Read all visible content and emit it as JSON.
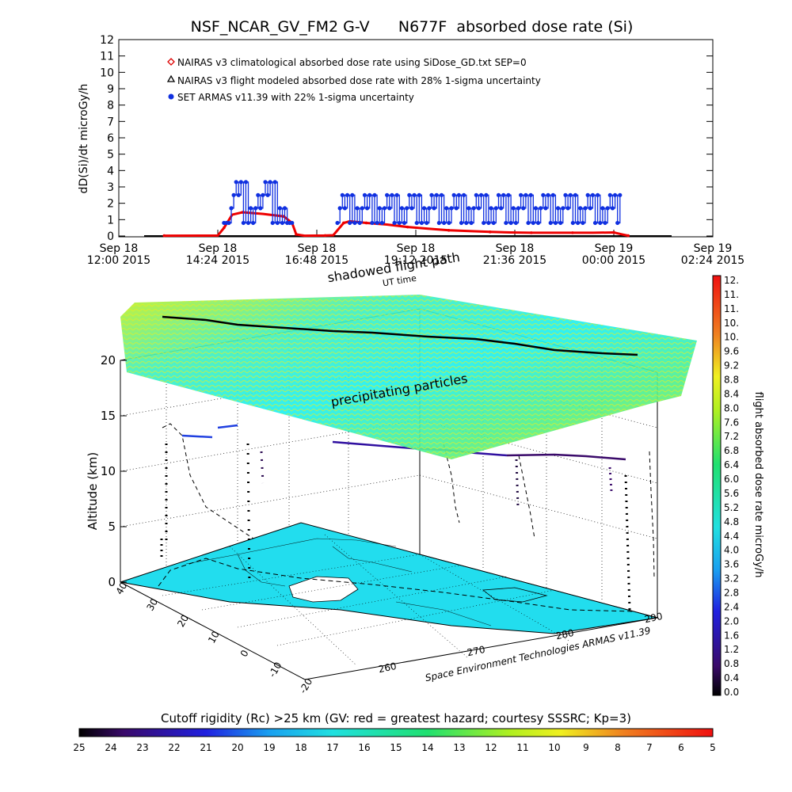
{
  "title": "NSF_NCAR_GV_FM2 G-V      N677F  absorbed dose rate (Si)",
  "chart_data": [
    {
      "type": "line",
      "ylabel": "dD(Si)/dt microGy/h",
      "ylim": [
        0,
        12
      ],
      "yticks": [
        "0",
        "1",
        "2",
        "3",
        "4",
        "5",
        "6",
        "7",
        "8",
        "9",
        "10",
        "11",
        "12"
      ],
      "xlim_hours": [
        0,
        14.4
      ],
      "xticks": [
        {
          "line1": "Sep 18",
          "line2": "12:00 2015",
          "h": 0
        },
        {
          "line1": "Sep 18",
          "line2": "14:24 2015",
          "h": 2.4
        },
        {
          "line1": "Sep 18",
          "line2": "16:48 2015",
          "h": 4.8
        },
        {
          "line1": "Sep 18",
          "line2": "19:12 2015",
          "h": 7.2
        },
        {
          "line1": "Sep 18",
          "line2": "21:36 2015",
          "h": 9.6
        },
        {
          "line1": "Sep 19",
          "line2": "00:00 2015",
          "h": 12.0
        },
        {
          "line1": "Sep 19",
          "line2": "02:24 2015",
          "h": 14.4
        }
      ],
      "legend": [
        {
          "label": "NAIRAS v3 climatological absorbed dose rate using SiDose_GD.txt SEP=0",
          "marker": "diamond",
          "color": "#dd0000"
        },
        {
          "label": "NAIRAS v3 flight modeled absorbed dose rate with 28% 1-sigma uncertainty",
          "marker": "triangle",
          "color": "#000000"
        },
        {
          "label": "SET ARMAS v11.39 with 22% 1-sigma uncertainty",
          "marker": "circle",
          "color": "#1030e0"
        }
      ],
      "series": [
        {
          "name": "NAIRAS v3 climatological absorbed dose rate using SiDose_GD.txt SEP=0",
          "color": "#ee0000",
          "x": [
            1.1,
            2.4,
            2.55,
            2.75,
            3.0,
            3.5,
            4.0,
            4.2,
            4.3,
            4.5,
            5.0,
            5.2,
            5.45,
            5.6,
            6.0,
            6.5,
            7.0,
            7.5,
            8.0,
            8.5,
            9.0,
            9.5,
            10.0,
            10.5,
            11.0,
            11.5,
            12.0,
            12.2,
            12.35
          ],
          "y": [
            0.02,
            0.03,
            0.5,
            1.3,
            1.45,
            1.35,
            1.2,
            0.8,
            0.1,
            0.02,
            0.03,
            0.05,
            0.8,
            0.9,
            0.8,
            0.7,
            0.55,
            0.45,
            0.35,
            0.3,
            0.25,
            0.22,
            0.2,
            0.2,
            0.2,
            0.2,
            0.22,
            0.1,
            0.02
          ]
        },
        {
          "name": "SET ARMAS v11.39 with 22% 1-sigma uncertainty",
          "color": "#1030e0",
          "segments": [
            {
              "x0": 2.55,
              "x1": 4.2,
              "levels": [
                0.8,
                1.7,
                2.5,
                3.3
              ]
            },
            {
              "x0": 5.3,
              "x1": 12.15,
              "levels": [
                0.8,
                1.7,
                2.5
              ]
            }
          ]
        }
      ]
    },
    {
      "type": "scatter",
      "zlabel": "Altitude (km)",
      "zticks": [
        "0",
        "5",
        "10",
        "15",
        "20"
      ],
      "lat_ticks": [
        "40",
        "30",
        "20",
        "10",
        "0",
        "-10",
        "-20"
      ],
      "lon_ticks": [
        "260",
        "270",
        "280",
        "290"
      ],
      "annotations": {
        "layer": "precipitating particles",
        "shadow": "shadowed flight path",
        "shadow_sub": "UT time"
      },
      "credit": "Space Environment Technologies ARMAS v11.39"
    }
  ],
  "colorbar_right": {
    "label": "flight absorbed dose rate microGy/h",
    "ticks": [
      "12.",
      "11.",
      "11.",
      "10.",
      "10.",
      "9.6",
      "9.2",
      "8.8",
      "8.4",
      "8.0",
      "7.6",
      "7.2",
      "6.8",
      "6.4",
      "6.0",
      "5.6",
      "5.2",
      "4.8",
      "4.4",
      "4.0",
      "3.6",
      "3.2",
      "2.8",
      "2.4",
      "2.0",
      "1.6",
      "1.2",
      "0.8",
      "0.4",
      "0.0"
    ]
  },
  "colorbar_bottom": {
    "label": "Cutoff rigidity (Rc) >25 km (GV: red = greatest hazard; courtesy SSSRC; Kp=3)",
    "ticks": [
      "25",
      "24",
      "23",
      "22",
      "21",
      "20",
      "19",
      "18",
      "17",
      "16",
      "15",
      "14",
      "13",
      "12",
      "11",
      "10",
      "9",
      "8",
      "7",
      "6",
      "5"
    ]
  }
}
